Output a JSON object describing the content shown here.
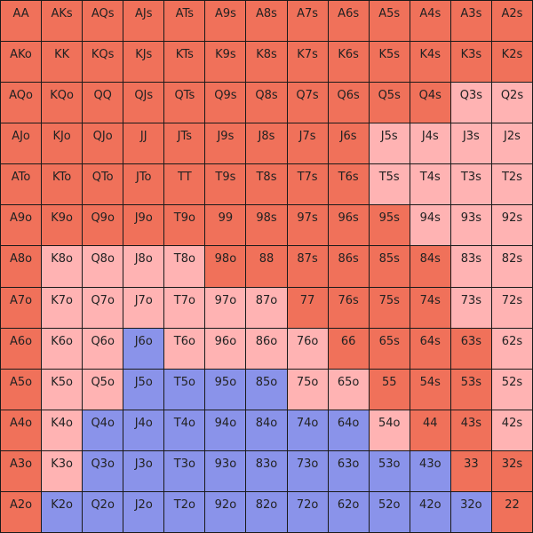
{
  "colors": {
    "raise": "#f0715a",
    "call": "#ffb3b3",
    "fold": "#8a93ea"
  },
  "grid": [
    [
      [
        "AA",
        "raise"
      ],
      [
        "AKs",
        "raise"
      ],
      [
        "AQs",
        "raise"
      ],
      [
        "AJs",
        "raise"
      ],
      [
        "ATs",
        "raise"
      ],
      [
        "A9s",
        "raise"
      ],
      [
        "A8s",
        "raise"
      ],
      [
        "A7s",
        "raise"
      ],
      [
        "A6s",
        "raise"
      ],
      [
        "A5s",
        "raise"
      ],
      [
        "A4s",
        "raise"
      ],
      [
        "A3s",
        "raise"
      ],
      [
        "A2s",
        "raise"
      ]
    ],
    [
      [
        "AKo",
        "raise"
      ],
      [
        "KK",
        "raise"
      ],
      [
        "KQs",
        "raise"
      ],
      [
        "KJs",
        "raise"
      ],
      [
        "KTs",
        "raise"
      ],
      [
        "K9s",
        "raise"
      ],
      [
        "K8s",
        "raise"
      ],
      [
        "K7s",
        "raise"
      ],
      [
        "K6s",
        "raise"
      ],
      [
        "K5s",
        "raise"
      ],
      [
        "K4s",
        "raise"
      ],
      [
        "K3s",
        "raise"
      ],
      [
        "K2s",
        "raise"
      ]
    ],
    [
      [
        "AQo",
        "raise"
      ],
      [
        "KQo",
        "raise"
      ],
      [
        "QQ",
        "raise"
      ],
      [
        "QJs",
        "raise"
      ],
      [
        "QTs",
        "raise"
      ],
      [
        "Q9s",
        "raise"
      ],
      [
        "Q8s",
        "raise"
      ],
      [
        "Q7s",
        "raise"
      ],
      [
        "Q6s",
        "raise"
      ],
      [
        "Q5s",
        "raise"
      ],
      [
        "Q4s",
        "raise"
      ],
      [
        "Q3s",
        "call"
      ],
      [
        "Q2s",
        "call"
      ]
    ],
    [
      [
        "AJo",
        "raise"
      ],
      [
        "KJo",
        "raise"
      ],
      [
        "QJo",
        "raise"
      ],
      [
        "JJ",
        "raise"
      ],
      [
        "JTs",
        "raise"
      ],
      [
        "J9s",
        "raise"
      ],
      [
        "J8s",
        "raise"
      ],
      [
        "J7s",
        "raise"
      ],
      [
        "J6s",
        "raise"
      ],
      [
        "J5s",
        "call"
      ],
      [
        "J4s",
        "call"
      ],
      [
        "J3s",
        "call"
      ],
      [
        "J2s",
        "call"
      ]
    ],
    [
      [
        "ATo",
        "raise"
      ],
      [
        "KTo",
        "raise"
      ],
      [
        "QTo",
        "raise"
      ],
      [
        "JTo",
        "raise"
      ],
      [
        "TT",
        "raise"
      ],
      [
        "T9s",
        "raise"
      ],
      [
        "T8s",
        "raise"
      ],
      [
        "T7s",
        "raise"
      ],
      [
        "T6s",
        "raise"
      ],
      [
        "T5s",
        "call"
      ],
      [
        "T4s",
        "call"
      ],
      [
        "T3s",
        "call"
      ],
      [
        "T2s",
        "call"
      ]
    ],
    [
      [
        "A9o",
        "raise"
      ],
      [
        "K9o",
        "raise"
      ],
      [
        "Q9o",
        "raise"
      ],
      [
        "J9o",
        "raise"
      ],
      [
        "T9o",
        "raise"
      ],
      [
        "99",
        "raise"
      ],
      [
        "98s",
        "raise"
      ],
      [
        "97s",
        "raise"
      ],
      [
        "96s",
        "raise"
      ],
      [
        "95s",
        "raise"
      ],
      [
        "94s",
        "call"
      ],
      [
        "93s",
        "call"
      ],
      [
        "92s",
        "call"
      ]
    ],
    [
      [
        "A8o",
        "raise"
      ],
      [
        "K8o",
        "call"
      ],
      [
        "Q8o",
        "call"
      ],
      [
        "J8o",
        "call"
      ],
      [
        "T8o",
        "call"
      ],
      [
        "98o",
        "raise"
      ],
      [
        "88",
        "raise"
      ],
      [
        "87s",
        "raise"
      ],
      [
        "86s",
        "raise"
      ],
      [
        "85s",
        "raise"
      ],
      [
        "84s",
        "raise"
      ],
      [
        "83s",
        "call"
      ],
      [
        "82s",
        "call"
      ]
    ],
    [
      [
        "A7o",
        "raise"
      ],
      [
        "K7o",
        "call"
      ],
      [
        "Q7o",
        "call"
      ],
      [
        "J7o",
        "call"
      ],
      [
        "T7o",
        "call"
      ],
      [
        "97o",
        "call"
      ],
      [
        "87o",
        "call"
      ],
      [
        "77",
        "raise"
      ],
      [
        "76s",
        "raise"
      ],
      [
        "75s",
        "raise"
      ],
      [
        "74s",
        "raise"
      ],
      [
        "73s",
        "call"
      ],
      [
        "72s",
        "call"
      ]
    ],
    [
      [
        "A6o",
        "raise"
      ],
      [
        "K6o",
        "call"
      ],
      [
        "Q6o",
        "call"
      ],
      [
        "J6o",
        "fold"
      ],
      [
        "T6o",
        "call"
      ],
      [
        "96o",
        "call"
      ],
      [
        "86o",
        "call"
      ],
      [
        "76o",
        "call"
      ],
      [
        "66",
        "raise"
      ],
      [
        "65s",
        "raise"
      ],
      [
        "64s",
        "raise"
      ],
      [
        "63s",
        "raise"
      ],
      [
        "62s",
        "call"
      ]
    ],
    [
      [
        "A5o",
        "raise"
      ],
      [
        "K5o",
        "call"
      ],
      [
        "Q5o",
        "call"
      ],
      [
        "J5o",
        "fold"
      ],
      [
        "T5o",
        "fold"
      ],
      [
        "95o",
        "fold"
      ],
      [
        "85o",
        "fold"
      ],
      [
        "75o",
        "call"
      ],
      [
        "65o",
        "call"
      ],
      [
        "55",
        "raise"
      ],
      [
        "54s",
        "raise"
      ],
      [
        "53s",
        "raise"
      ],
      [
        "52s",
        "call"
      ]
    ],
    [
      [
        "A4o",
        "raise"
      ],
      [
        "K4o",
        "call"
      ],
      [
        "Q4o",
        "fold"
      ],
      [
        "J4o",
        "fold"
      ],
      [
        "T4o",
        "fold"
      ],
      [
        "94o",
        "fold"
      ],
      [
        "84o",
        "fold"
      ],
      [
        "74o",
        "fold"
      ],
      [
        "64o",
        "fold"
      ],
      [
        "54o",
        "call"
      ],
      [
        "44",
        "raise"
      ],
      [
        "43s",
        "raise"
      ],
      [
        "42s",
        "call"
      ]
    ],
    [
      [
        "A3o",
        "raise"
      ],
      [
        "K3o",
        "call"
      ],
      [
        "Q3o",
        "fold"
      ],
      [
        "J3o",
        "fold"
      ],
      [
        "T3o",
        "fold"
      ],
      [
        "93o",
        "fold"
      ],
      [
        "83o",
        "fold"
      ],
      [
        "73o",
        "fold"
      ],
      [
        "63o",
        "fold"
      ],
      [
        "53o",
        "fold"
      ],
      [
        "43o",
        "fold"
      ],
      [
        "33",
        "raise"
      ],
      [
        "32s",
        "raise"
      ]
    ],
    [
      [
        "A2o",
        "raise"
      ],
      [
        "K2o",
        "fold"
      ],
      [
        "Q2o",
        "fold"
      ],
      [
        "J2o",
        "fold"
      ],
      [
        "T2o",
        "fold"
      ],
      [
        "92o",
        "fold"
      ],
      [
        "82o",
        "fold"
      ],
      [
        "72o",
        "fold"
      ],
      [
        "62o",
        "fold"
      ],
      [
        "52o",
        "fold"
      ],
      [
        "42o",
        "fold"
      ],
      [
        "32o",
        "fold"
      ],
      [
        "22",
        "raise"
      ]
    ]
  ]
}
